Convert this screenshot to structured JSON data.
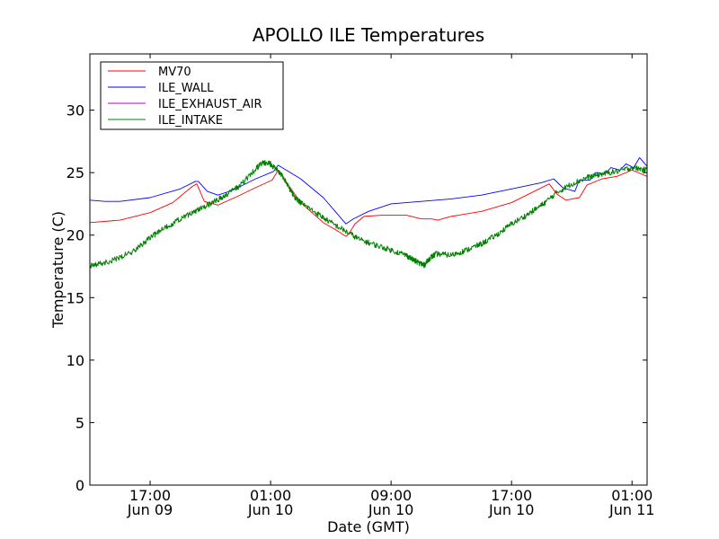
{
  "chart_data": {
    "type": "line",
    "title": "APOLLO ILE Temperatures",
    "xlabel": "Date (GMT)",
    "ylabel": "Temperature (C)",
    "x_unit": "hours since Jun 09 12:00 GMT",
    "xlim": [
      0,
      37
    ],
    "ylim": [
      0,
      34.5
    ],
    "yticks": [
      0,
      5,
      10,
      15,
      20,
      25,
      30
    ],
    "xticks": [
      {
        "x": 4,
        "line1": "17:00",
        "line2": "Jun 09"
      },
      {
        "x": 12,
        "line1": "01:00",
        "line2": "Jun 10"
      },
      {
        "x": 20,
        "line1": "09:00",
        "line2": "Jun 10"
      },
      {
        "x": 28,
        "line1": "17:00",
        "line2": "Jun 10"
      },
      {
        "x": 36,
        "line1": "01:00",
        "line2": "Jun 11"
      }
    ],
    "legend_position": "upper-left",
    "series": [
      {
        "name": "MV70",
        "color": "#ff0000",
        "x": [
          0,
          2,
          4,
          5.5,
          6.8,
          7.1,
          7.6,
          8.5,
          9.8,
          11,
          12.1,
          12.5,
          14,
          15.5,
          16.5,
          17,
          17.2,
          17.6,
          18.2,
          19.5,
          21,
          22,
          22.7,
          23.1,
          24,
          26,
          28,
          30.5,
          31,
          31.6,
          32.5,
          33,
          34,
          35,
          36,
          37
        ],
        "y": [
          21.0,
          21.2,
          21.8,
          22.6,
          23.9,
          24.1,
          22.7,
          22.4,
          23.1,
          23.8,
          24.4,
          25.2,
          22.6,
          21.0,
          20.3,
          19.9,
          20.1,
          20.9,
          21.5,
          21.6,
          21.6,
          21.3,
          21.3,
          21.2,
          21.5,
          21.9,
          22.6,
          24.1,
          23.3,
          22.8,
          23.0,
          24.0,
          24.5,
          24.7,
          25.2,
          24.7
        ]
      },
      {
        "name": "ILE_WALL",
        "color": "#0000ff",
        "x": [
          0,
          1,
          2,
          4,
          6,
          7,
          7.2,
          7.8,
          8.5,
          9.5,
          11,
          12.2,
          12.5,
          14,
          15.5,
          16.5,
          17,
          17.5,
          18.5,
          20,
          22,
          24,
          26,
          28,
          30,
          30.8,
          31.4,
          32.2,
          32.5,
          33.2,
          33.6,
          34.2,
          34.6,
          35.2,
          35.6,
          36.1,
          36.5,
          37
        ],
        "y": [
          22.8,
          22.7,
          22.7,
          23.0,
          23.7,
          24.3,
          24.3,
          23.5,
          23.2,
          23.6,
          24.5,
          25.1,
          25.6,
          24.5,
          23.0,
          21.6,
          20.9,
          21.3,
          21.9,
          22.5,
          22.7,
          22.9,
          23.2,
          23.7,
          24.2,
          24.5,
          23.8,
          23.5,
          24.4,
          24.4,
          25.0,
          24.9,
          25.4,
          25.2,
          25.7,
          25.4,
          26.2,
          25.5
        ]
      },
      {
        "name": "ILE_EXHAUST_AIR",
        "color": "#bf00bf",
        "x": [],
        "y": []
      },
      {
        "name": "ILE_INTAKE",
        "color": "#008000",
        "x": [
          0,
          1,
          2,
          3,
          4,
          5,
          6,
          7,
          8,
          9,
          10,
          11,
          11.5,
          12,
          12.4,
          12.8,
          13.5,
          14,
          15,
          16,
          17,
          18,
          19,
          20,
          21,
          21.5,
          22,
          22.2,
          22.6,
          23,
          24,
          25,
          26,
          27,
          28,
          29,
          30,
          31,
          32,
          33,
          34,
          35,
          36,
          37
        ],
        "y": [
          17.5,
          17.8,
          18.2,
          18.8,
          19.8,
          20.6,
          21.3,
          21.9,
          22.5,
          23.2,
          24.0,
          25.3,
          25.8,
          25.7,
          25.2,
          24.7,
          23.2,
          22.6,
          21.8,
          21.0,
          20.3,
          19.6,
          19.2,
          18.8,
          18.4,
          18.0,
          17.7,
          17.6,
          18.2,
          18.5,
          18.4,
          18.8,
          19.3,
          20.0,
          20.9,
          21.6,
          22.4,
          23.4,
          24.1,
          24.6,
          24.9,
          25.1,
          25.4,
          25.2
        ]
      }
    ]
  }
}
